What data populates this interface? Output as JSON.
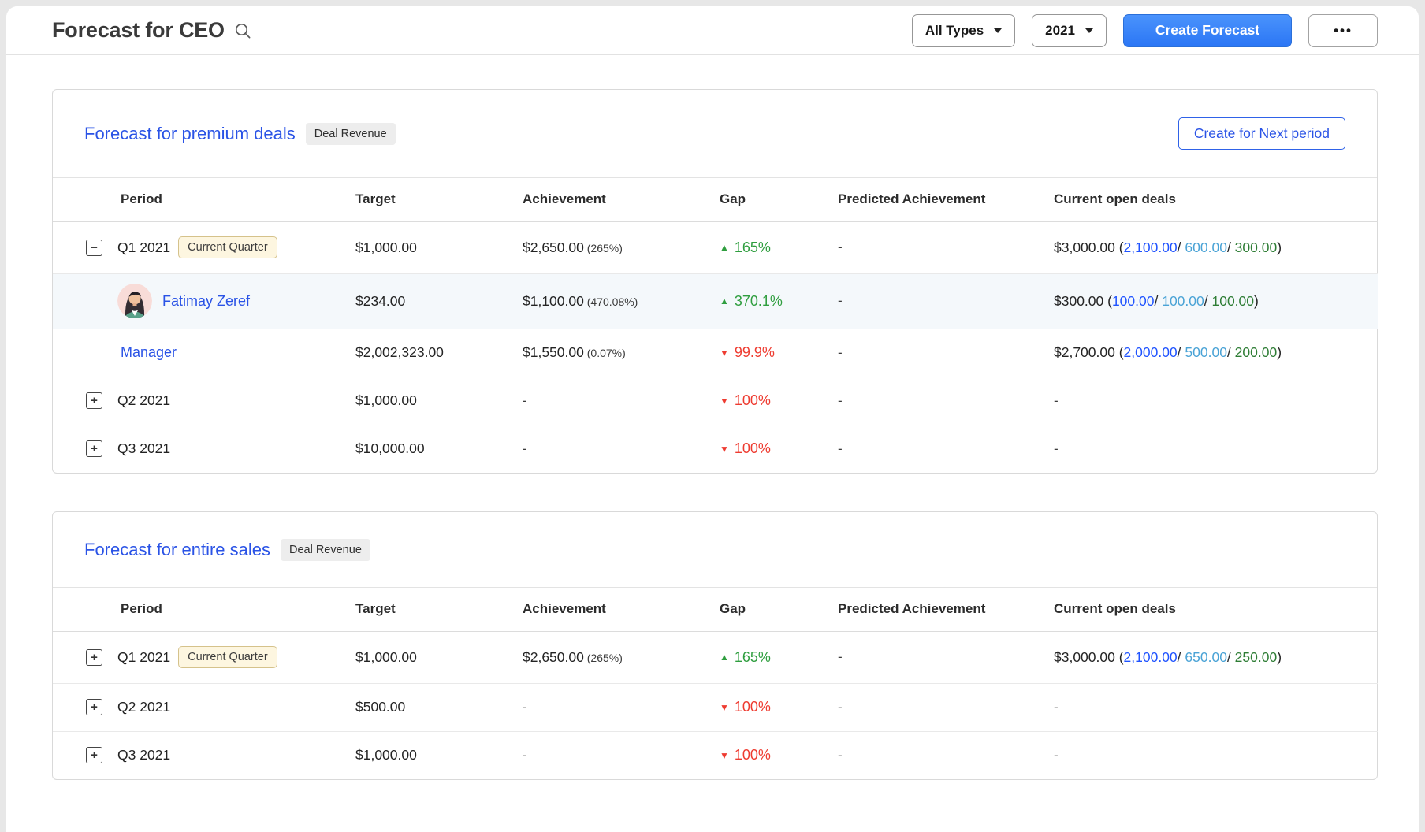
{
  "page": {
    "title": "Forecast for CEO",
    "controls": {
      "type_filter": "All Types",
      "year_filter": "2021",
      "create_button": "Create Forecast",
      "more_button": "•••"
    }
  },
  "columns": [
    "Period",
    "Target",
    "Achievement",
    "Gap",
    "Predicted Achievement",
    "Current open deals"
  ],
  "icons": {
    "minus": "−",
    "plus": "+",
    "gap_up": "▲",
    "gap_down": "▼",
    "search": "magnifier",
    "more": "ellipsis"
  },
  "colors": {
    "link_blue": "#2a53e6",
    "primary_blue": "#2b76f5",
    "gap_up_green": "#2f9e3f",
    "gap_down_red": "#ee3b30",
    "open_committed_blue": "#1f53ff",
    "open_best_cyan": "#4aa3d6",
    "open_pipeline_green": "#2e7d35",
    "current_quarter_bg": "#fdf6e0"
  },
  "sections": [
    {
      "title": "Forecast for premium deals",
      "badge": "Deal Revenue",
      "action_button": "Create for Next period",
      "rows": [
        {
          "type": "period",
          "expand": "minus",
          "label": "Q1 2021",
          "badge": "Current Quarter",
          "target": "$1,000.00",
          "achievement": "$2,650.00",
          "achievement_pct": "(265%)",
          "gap": {
            "dir": "up",
            "value": "165%"
          },
          "predicted": "-",
          "open_deals": {
            "total": "$3,000.00",
            "parts": [
              "2,100.00",
              "600.00",
              "300.00"
            ]
          }
        },
        {
          "type": "person",
          "label": "Fatimay Zeref",
          "target": "$234.00",
          "achievement": "$1,100.00",
          "achievement_pct": "(470.08%)",
          "gap": {
            "dir": "up",
            "value": "370.1%"
          },
          "predicted": "-",
          "open_deals": {
            "total": "$300.00",
            "parts": [
              "100.00",
              "100.00",
              "100.00"
            ]
          }
        },
        {
          "type": "role",
          "label": "Manager",
          "target": "$2,002,323.00",
          "achievement": "$1,550.00",
          "achievement_pct": "(0.07%)",
          "gap": {
            "dir": "down",
            "value": "99.9%"
          },
          "predicted": "-",
          "open_deals": {
            "total": "$2,700.00",
            "parts": [
              "2,000.00",
              "500.00",
              "200.00"
            ]
          }
        },
        {
          "type": "period",
          "expand": "plus",
          "label": "Q2 2021",
          "target": "$1,000.00",
          "achievement": "-",
          "gap": {
            "dir": "down",
            "value": "100%"
          },
          "predicted": "-",
          "open_deals": null
        },
        {
          "type": "period",
          "expand": "plus",
          "label": "Q3 2021",
          "target": "$10,000.00",
          "achievement": "-",
          "gap": {
            "dir": "down",
            "value": "100%"
          },
          "predicted": "-",
          "open_deals": null
        }
      ]
    },
    {
      "title": "Forecast for entire sales",
      "badge": "Deal Revenue",
      "rows": [
        {
          "type": "period",
          "expand": "plus",
          "label": "Q1 2021",
          "badge": "Current Quarter",
          "target": "$1,000.00",
          "achievement": "$2,650.00",
          "achievement_pct": "(265%)",
          "gap": {
            "dir": "up",
            "value": "165%"
          },
          "predicted": "-",
          "open_deals": {
            "total": "$3,000.00",
            "parts": [
              "2,100.00",
              "650.00",
              "250.00"
            ]
          }
        },
        {
          "type": "period",
          "expand": "plus",
          "label": "Q2 2021",
          "target": "$500.00",
          "achievement": "-",
          "gap": {
            "dir": "down",
            "value": "100%"
          },
          "predicted": "-",
          "open_deals": null
        },
        {
          "type": "period",
          "expand": "plus",
          "label": "Q3 2021",
          "target": "$1,000.00",
          "achievement": "-",
          "gap": {
            "dir": "down",
            "value": "100%"
          },
          "predicted": "-",
          "open_deals": null
        }
      ]
    }
  ]
}
